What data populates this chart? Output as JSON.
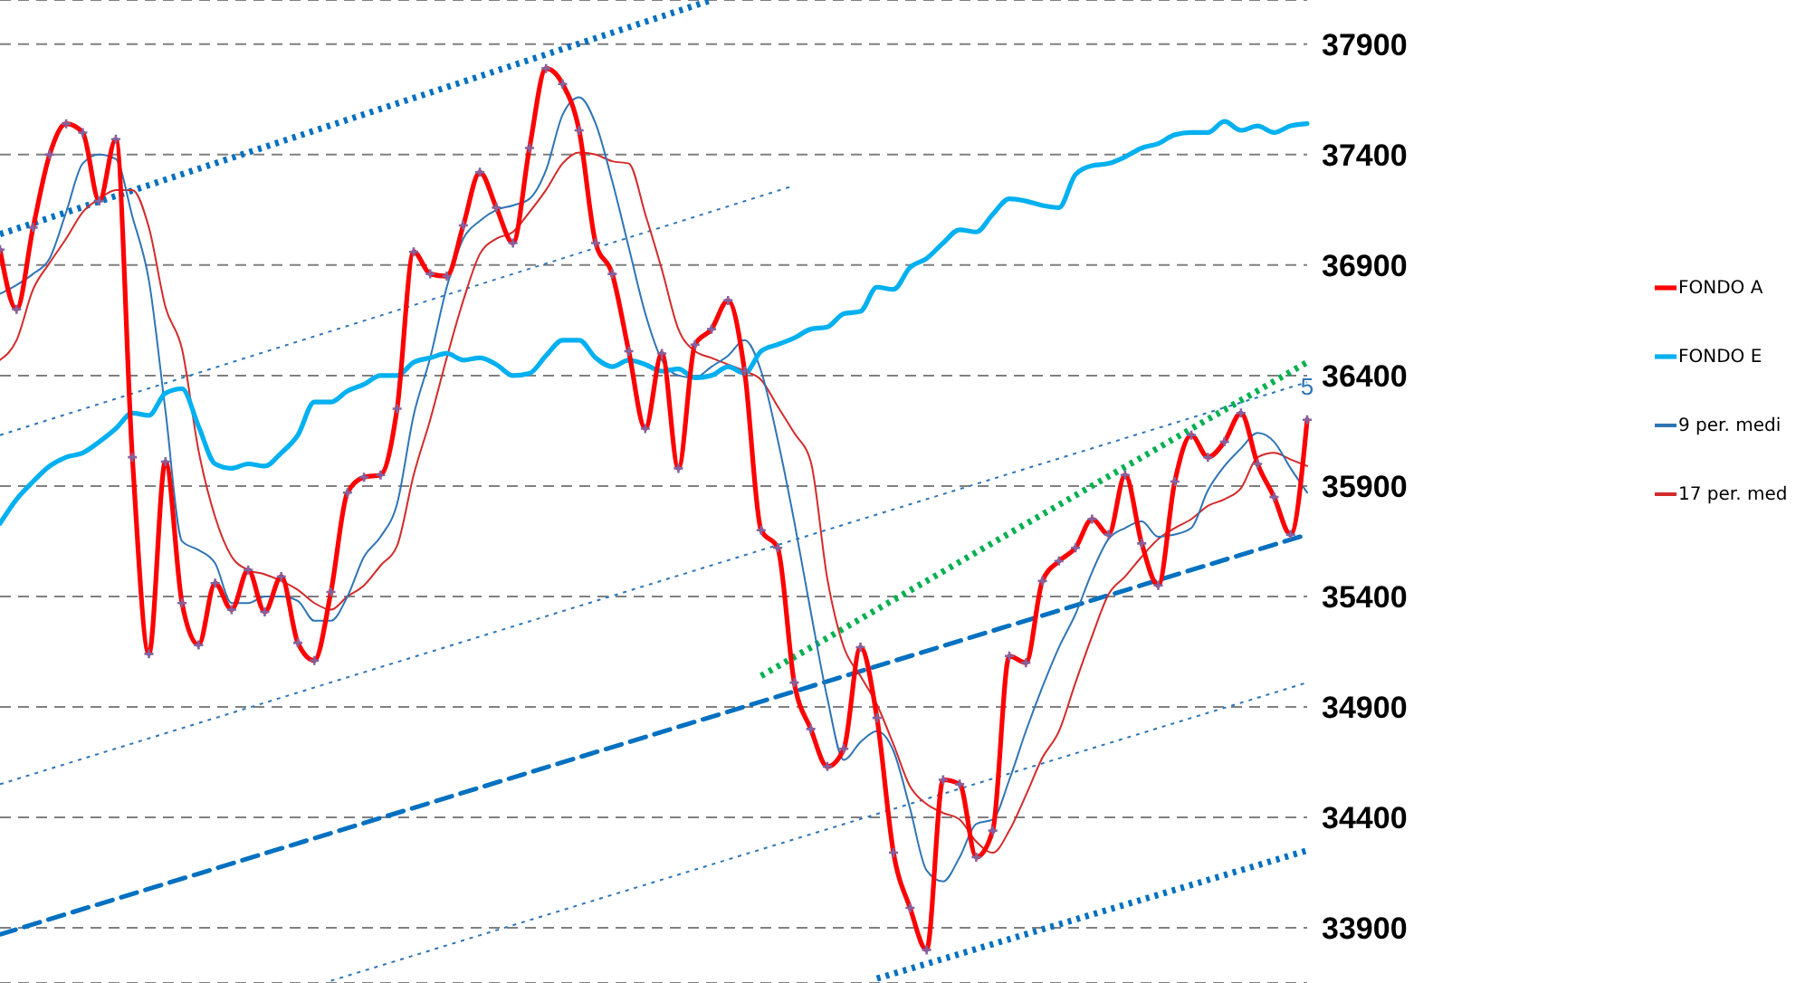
{
  "chart_data": {
    "type": "line",
    "categories": [
      null,
      null,
      null,
      null,
      null,
      null,
      null,
      null,
      null,
      null,
      null,
      null,
      null,
      null,
      null,
      null,
      null,
      null,
      null,
      null,
      null,
      null,
      null,
      null,
      null,
      null,
      null,
      null,
      null,
      null,
      null,
      null,
      null,
      null,
      null,
      null,
      null,
      null,
      null,
      null,
      null,
      null,
      null,
      null,
      null,
      null,
      null,
      null,
      null,
      null,
      null,
      null,
      null,
      null,
      null,
      null,
      null,
      null,
      null,
      null,
      null,
      null,
      null,
      null,
      null,
      null,
      null,
      null,
      null,
      null,
      null,
      null,
      null,
      null,
      null,
      null,
      null,
      null,
      null,
      null
    ],
    "ylim": [
      33650,
      38100
    ],
    "yticks": [
      33900,
      34400,
      34900,
      35400,
      35900,
      36400,
      36900,
      37400,
      37900
    ],
    "tick_labels": "y",
    "grid": "y",
    "legend": "right",
    "annotations": [
      {
        "text": "5",
        "y": 36350
      }
    ],
    "series": [
      {
        "name": "FONDO A",
        "color": "#ff0000",
        "marker": "cross",
        "values": [
          36970,
          36700,
          37070,
          37400,
          37540,
          37500,
          37190,
          37470,
          36030,
          35140,
          36010,
          35370,
          35180,
          35460,
          35340,
          35520,
          35330,
          35490,
          35190,
          35110,
          35420,
          35870,
          35940,
          35950,
          36250,
          36960,
          36860,
          36850,
          37080,
          37320,
          37160,
          37000,
          37430,
          37790,
          37720,
          37510,
          37000,
          36860,
          36510,
          36160,
          36500,
          35980,
          36540,
          36610,
          36740,
          36420,
          35700,
          35620,
          35010,
          34800,
          34630,
          34710,
          35170,
          34850,
          34240,
          33990,
          33800,
          34570,
          34550,
          34220,
          34340,
          35130,
          35100,
          35470,
          35560,
          35620,
          35750,
          35680,
          35950,
          35640,
          35450,
          35920,
          36130,
          36030,
          36100,
          36230,
          36000,
          35850,
          35680,
          36200
        ]
      },
      {
        "name": "FONDO E",
        "color": "#00b0f0",
        "values": [
          35730,
          35840,
          35920,
          35990,
          36030,
          36050,
          36100,
          36160,
          36230,
          36220,
          36320,
          36340,
          36170,
          36000,
          35980,
          36000,
          35990,
          36050,
          36130,
          36280,
          36280,
          36330,
          36360,
          36400,
          36400,
          36460,
          36480,
          36500,
          36470,
          36480,
          36450,
          36400,
          36410,
          36490,
          36560,
          36560,
          36480,
          36440,
          36470,
          36450,
          36420,
          36430,
          36390,
          36400,
          36440,
          36410,
          36510,
          36540,
          36570,
          36610,
          36620,
          36680,
          36690,
          36800,
          36790,
          36890,
          36930,
          37000,
          37060,
          37050,
          37130,
          37200,
          37190,
          37170,
          37160,
          37310,
          37350,
          37360,
          37390,
          37430,
          37450,
          37490,
          37500,
          37500,
          37550,
          37510,
          37530,
          37500,
          37530,
          37540
        ]
      },
      {
        "name": "9 per. medi",
        "color": "#2e75b6",
        "values": [
          36770,
          36810,
          36860,
          36930,
          37140,
          37360,
          37400,
          37380,
          37120,
          36830,
          36240,
          35650,
          35610,
          35550,
          35370,
          35370,
          35400,
          35400,
          35380,
          35290,
          35290,
          35400,
          35580,
          35670,
          35820,
          36220,
          36480,
          36800,
          37020,
          37100,
          37150,
          37170,
          37200,
          37330,
          37580,
          37660,
          37540,
          37280,
          36980,
          36680,
          36470,
          36400,
          36390,
          36440,
          36490,
          36560,
          36420,
          36110,
          35740,
          35330,
          34940,
          34660,
          34740,
          34790,
          34700,
          34440,
          34160,
          34110,
          34220,
          34370,
          34390,
          34570,
          34790,
          34990,
          35170,
          35320,
          35510,
          35660,
          35710,
          35740,
          35670,
          35680,
          35710,
          35880,
          35990,
          36070,
          36140,
          36100,
          35980,
          35870
        ]
      },
      {
        "name": "17 per. med",
        "color": "#d42a2a",
        "values": [
          36470,
          36560,
          36790,
          36910,
          37020,
          37140,
          37200,
          37240,
          37240,
          37070,
          36710,
          36520,
          36060,
          35760,
          35580,
          35520,
          35500,
          35470,
          35430,
          35370,
          35340,
          35400,
          35450,
          35540,
          35630,
          35950,
          36200,
          36480,
          36740,
          36950,
          37020,
          37050,
          37140,
          37240,
          37360,
          37410,
          37400,
          37370,
          37360,
          37130,
          36880,
          36610,
          36510,
          36480,
          36450,
          36420,
          36380,
          36260,
          36140,
          36010,
          35480,
          35170,
          35040,
          34910,
          34730,
          34540,
          34460,
          34420,
          34390,
          34290,
          34240,
          34340,
          34500,
          34670,
          34790,
          35010,
          35220,
          35410,
          35490,
          35580,
          35660,
          35710,
          35750,
          35810,
          35840,
          35890,
          36030,
          36050,
          36020,
          35990
        ]
      },
      {
        "color": "#0070c0",
        "line_style": "dotted",
        "values": [
          37040,
          null,
          null,
          null,
          null,
          null,
          null,
          null,
          null,
          null,
          null,
          null,
          null,
          null,
          null,
          null,
          null,
          null,
          null,
          null,
          null,
          null,
          null,
          null,
          null,
          null,
          null,
          null,
          null,
          null,
          null,
          null,
          null,
          null,
          null,
          null,
          null,
          null,
          null,
          null,
          null,
          null,
          null,
          38100,
          null,
          null,
          null,
          null,
          null,
          null,
          null,
          null,
          null,
          null,
          null,
          null,
          null,
          null,
          null,
          null,
          null,
          null,
          null,
          null,
          null,
          null,
          null,
          null,
          null,
          null,
          null,
          null,
          null,
          null,
          null,
          null,
          null,
          null,
          null,
          null
        ]
      },
      {
        "color": "#0070c0",
        "line_style": "dotted",
        "values": [
          null,
          null,
          null,
          null,
          null,
          null,
          null,
          null,
          null,
          null,
          null,
          null,
          null,
          null,
          null,
          null,
          null,
          null,
          null,
          null,
          null,
          null,
          null,
          null,
          null,
          null,
          null,
          null,
          null,
          null,
          null,
          null,
          null,
          null,
          null,
          null,
          null,
          null,
          null,
          null,
          null,
          null,
          null,
          null,
          null,
          null,
          null,
          null,
          null,
          null,
          null,
          null,
          null,
          33670,
          null,
          null,
          null,
          null,
          null,
          null,
          null,
          null,
          null,
          null,
          null,
          null,
          null,
          null,
          null,
          null,
          null,
          null,
          null,
          null,
          null,
          null,
          null,
          null,
          null,
          34250
        ]
      },
      {
        "color": "#0070c0",
        "line_style": "dashed",
        "values": [
          33870,
          null,
          null,
          null,
          null,
          null,
          null,
          null,
          null,
          null,
          null,
          null,
          null,
          null,
          null,
          null,
          null,
          null,
          null,
          null,
          null,
          null,
          null,
          null,
          null,
          null,
          null,
          null,
          null,
          null,
          null,
          null,
          null,
          null,
          null,
          null,
          null,
          null,
          null,
          null,
          null,
          null,
          null,
          null,
          null,
          null,
          null,
          null,
          null,
          null,
          null,
          null,
          null,
          null,
          null,
          null,
          null,
          null,
          null,
          null,
          null,
          null,
          null,
          null,
          null,
          null,
          null,
          null,
          null,
          null,
          null,
          null,
          null,
          null,
          null,
          null,
          null,
          null,
          null,
          35680
        ]
      },
      {
        "color": "#00b050",
        "line_style": "dotted",
        "values": [
          null,
          null,
          null,
          null,
          null,
          null,
          null,
          null,
          null,
          null,
          null,
          null,
          null,
          null,
          null,
          null,
          null,
          null,
          null,
          null,
          null,
          null,
          null,
          null,
          null,
          null,
          null,
          null,
          null,
          null,
          null,
          null,
          null,
          null,
          null,
          null,
          null,
          null,
          null,
          null,
          null,
          null,
          null,
          null,
          null,
          null,
          35040,
          null,
          null,
          null,
          null,
          null,
          null,
          null,
          null,
          null,
          null,
          null,
          null,
          null,
          null,
          null,
          null,
          null,
          null,
          null,
          null,
          null,
          null,
          null,
          null,
          null,
          null,
          null,
          null,
          null,
          null,
          null,
          null,
          36460
        ]
      },
      {
        "color": "#2e75b6",
        "line_style": "dotted",
        "values": [
          36130,
          null,
          null,
          null,
          null,
          null,
          null,
          null,
          null,
          null,
          null,
          null,
          null,
          null,
          null,
          null,
          null,
          null,
          null,
          null,
          null,
          null,
          null,
          null,
          null,
          null,
          null,
          null,
          null,
          null,
          null,
          null,
          null,
          null,
          null,
          null,
          null,
          null,
          null,
          null,
          null,
          null,
          null,
          null,
          null,
          null,
          null,
          null,
          37260,
          null,
          null,
          null,
          null,
          null,
          null,
          null,
          null,
          null,
          null,
          null,
          null,
          null,
          null,
          null,
          null,
          null,
          null,
          null,
          null,
          null,
          null,
          null,
          null,
          null,
          null,
          null,
          null,
          null,
          null,
          null
        ]
      },
      {
        "color": "#2e75b6",
        "line_style": "dotted",
        "values": [
          34550,
          null,
          null,
          null,
          null,
          null,
          null,
          null,
          null,
          null,
          null,
          null,
          null,
          null,
          null,
          null,
          null,
          null,
          null,
          null,
          null,
          null,
          null,
          null,
          null,
          null,
          null,
          null,
          null,
          null,
          null,
          null,
          null,
          null,
          null,
          null,
          null,
          null,
          null,
          null,
          null,
          null,
          null,
          null,
          null,
          null,
          null,
          null,
          null,
          null,
          null,
          null,
          null,
          null,
          null,
          null,
          null,
          null,
          null,
          null,
          null,
          null,
          null,
          null,
          null,
          null,
          null,
          null,
          null,
          null,
          null,
          null,
          null,
          null,
          null,
          null,
          null,
          null,
          null,
          36370
        ]
      },
      {
        "color": "#2e75b6",
        "line_style": "dotted",
        "values": [
          null,
          null,
          null,
          null,
          null,
          null,
          null,
          null,
          null,
          null,
          null,
          null,
          null,
          null,
          null,
          null,
          null,
          null,
          null,
          null,
          33660,
          null,
          null,
          null,
          null,
          null,
          null,
          null,
          null,
          null,
          null,
          null,
          null,
          null,
          null,
          null,
          null,
          null,
          null,
          null,
          null,
          null,
          null,
          null,
          null,
          null,
          null,
          null,
          null,
          null,
          null,
          null,
          null,
          null,
          null,
          null,
          null,
          null,
          null,
          null,
          null,
          null,
          null,
          null,
          null,
          null,
          null,
          null,
          null,
          null,
          null,
          null,
          null,
          null,
          null,
          null,
          null,
          null,
          null,
          35010
        ]
      }
    ]
  }
}
